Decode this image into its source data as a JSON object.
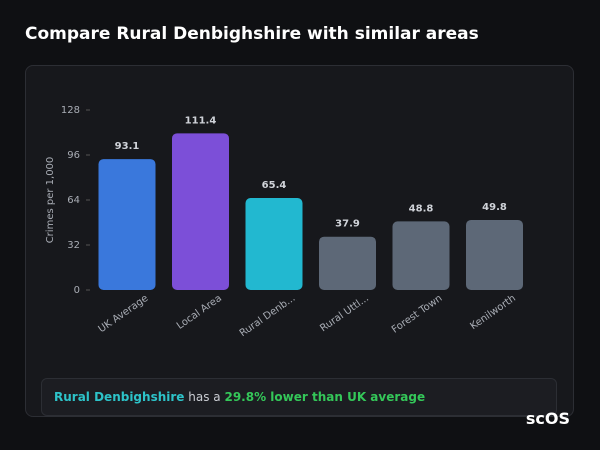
{
  "chart_data": {
    "type": "bar",
    "title": "Compare Rural Denbighshire with similar areas",
    "y_label": "Crimes per 1,000",
    "categories": [
      "UK Average",
      "Local Area",
      "Rural Denb...",
      "Rural Uttl...",
      "Forest Town",
      "Kenilworth"
    ],
    "values": [
      93.1,
      111.4,
      65.4,
      37.9,
      48.8,
      49.8
    ],
    "colors": [
      "#3a78dc",
      "#7c4fd8",
      "#22b8d0",
      "#5d6877",
      "#5d6877",
      "#5d6877"
    ],
    "ylim": [
      0,
      128
    ],
    "yticks": [
      0,
      32,
      64,
      96,
      128
    ]
  },
  "summary": {
    "area": "Rural Denbighshire",
    "connector": "has a",
    "comparison": "29.8% lower than UK average"
  },
  "watermark": "scOS"
}
